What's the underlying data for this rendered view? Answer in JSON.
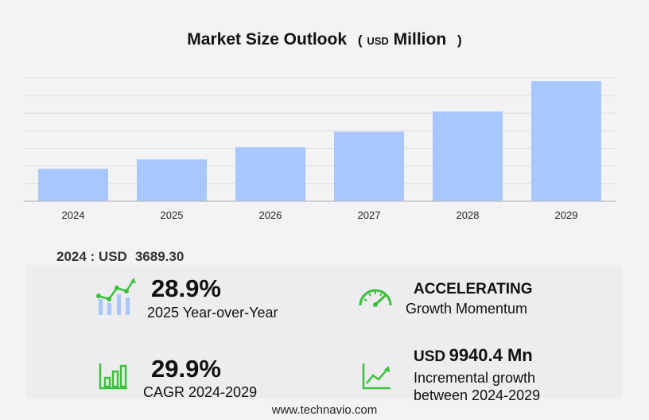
{
  "header": {
    "title_main": "Market Size Outlook",
    "title_open": "(",
    "title_unit": "USD",
    "title_unit_word": "Million",
    "title_close": ")"
  },
  "chart_data": {
    "type": "bar",
    "categories": [
      "2024",
      "2025",
      "2026",
      "2027",
      "2028",
      "2029"
    ],
    "values": [
      3689.3,
      4755.8,
      6130.8,
      7903.4,
      10188.4,
      13629.7
    ],
    "ylim": [
      0,
      14000
    ],
    "grid": true,
    "bar_color": "#a8c8fd"
  },
  "headline": {
    "year_label": "2024 : USD",
    "value": "3689.30"
  },
  "stats": {
    "yoy": {
      "value": "28.9%",
      "label": "2025 Year-over-Year"
    },
    "momentum": {
      "value": "ACCELERATING",
      "label": "Growth Momentum"
    },
    "cagr": {
      "value": "29.9%",
      "label": "CAGR 2024-2029"
    },
    "incremental": {
      "unit": "USD",
      "value": "9940.4 Mn",
      "label_line1": "Incremental growth",
      "label_line2": "between 2024-2029"
    }
  },
  "icons": {
    "yoy": "growth-chart-icon",
    "momentum": "speedometer-icon",
    "cagr": "bar-chart-icon",
    "incremental": "trend-line-icon",
    "accent": "#3cc13b"
  },
  "footer": {
    "url": "www.technavio.com"
  }
}
